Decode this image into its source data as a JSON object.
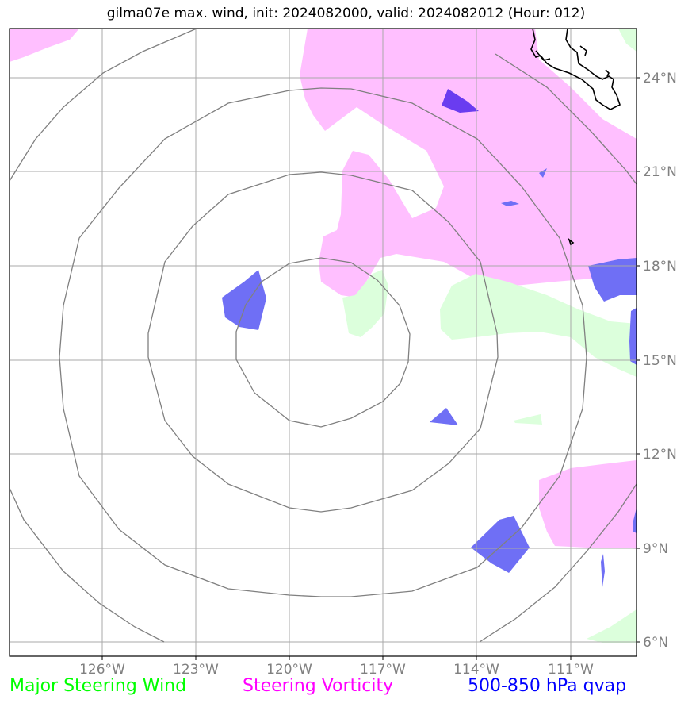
{
  "title": "gilma07e max. wind, init: 2024082000, valid: 2024082012 (Hour: 012)",
  "lon_labels": [
    "126°W",
    "123°W",
    "120°W",
    "117°W",
    "114°W",
    "111°W"
  ],
  "lat_labels": [
    "24°N",
    "21°N",
    "18°N",
    "15°N",
    "12°N",
    "9°N",
    "6°N"
  ],
  "legend": [
    {
      "label": "Major Steering Wind",
      "color": "#00ff00"
    },
    {
      "label": "Steering Vorticity",
      "color": "#ff00ff"
    },
    {
      "label": "500-850 hPa qvap",
      "color": "#0000ff"
    }
  ],
  "colors": {
    "vorticity_fill": "#ffbfff",
    "wind_fill": "#dcffdc",
    "qvap_fill": "#6f6ff5",
    "qvap_dark": "#6a3cf0",
    "grid": "#a8a8a8",
    "range_ring": "#808080",
    "coastline": "#000000",
    "tick_label": "#808080"
  }
}
